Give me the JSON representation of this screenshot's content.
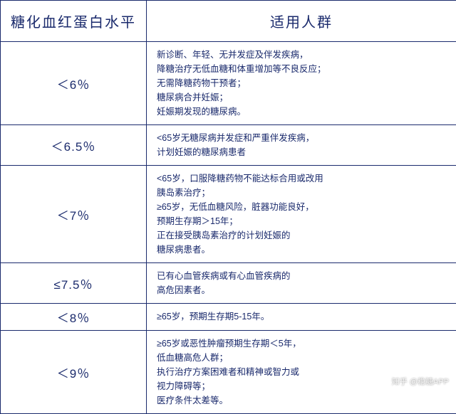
{
  "colors": {
    "primary": "#1a2a6c",
    "background": "#ffffff",
    "border": "#1a2a6c"
  },
  "typography": {
    "header_fontsize": 20,
    "level_fontsize": 17,
    "desc_fontsize": 12.5,
    "line_height": 1.6
  },
  "layout": {
    "left_col_width": 205,
    "right_col_width": 435
  },
  "table": {
    "headers": {
      "level": "糖化血红蛋白水平",
      "population": "适用人群"
    },
    "rows": [
      {
        "level": "＜6％",
        "desc": "新诊断、年轻、无并发症及伴发疾病，\n降糖治疗无低血糖和体重增加等不良反应；\n无需降糖药物干预者；\n糖尿病合并妊娠；\n妊娠期发现的糖尿病。"
      },
      {
        "level": "＜6.5％",
        "desc": "<65岁无糖尿病并发症和严重伴发疾病，\n计划妊娠的糖尿病患者"
      },
      {
        "level": "＜7％",
        "desc": "<65岁，口服降糖药物不能达标合用或改用\n胰岛素治疗；\n≥65岁，无低血糖风险，脏器功能良好，\n预期生存期＞15年；\n正在接受胰岛素治疗的计划妊娠的\n糖尿病患者。"
      },
      {
        "level": "≤7.5％",
        "desc": "已有心血管疾病或有心血管疾病的\n高危因素者。"
      },
      {
        "level": "＜8％",
        "desc": "≥65岁，预期生存期5-15年。"
      },
      {
        "level": "＜9％",
        "desc": "≥65岁或恶性肿瘤预期生存期＜5年，\n低血糖高危人群；\n执行治疗方案困难者和精神或智力或\n视力障碍等；\n医疗条件太差等。"
      }
    ]
  },
  "watermark": "知乎 @稳糖APP"
}
